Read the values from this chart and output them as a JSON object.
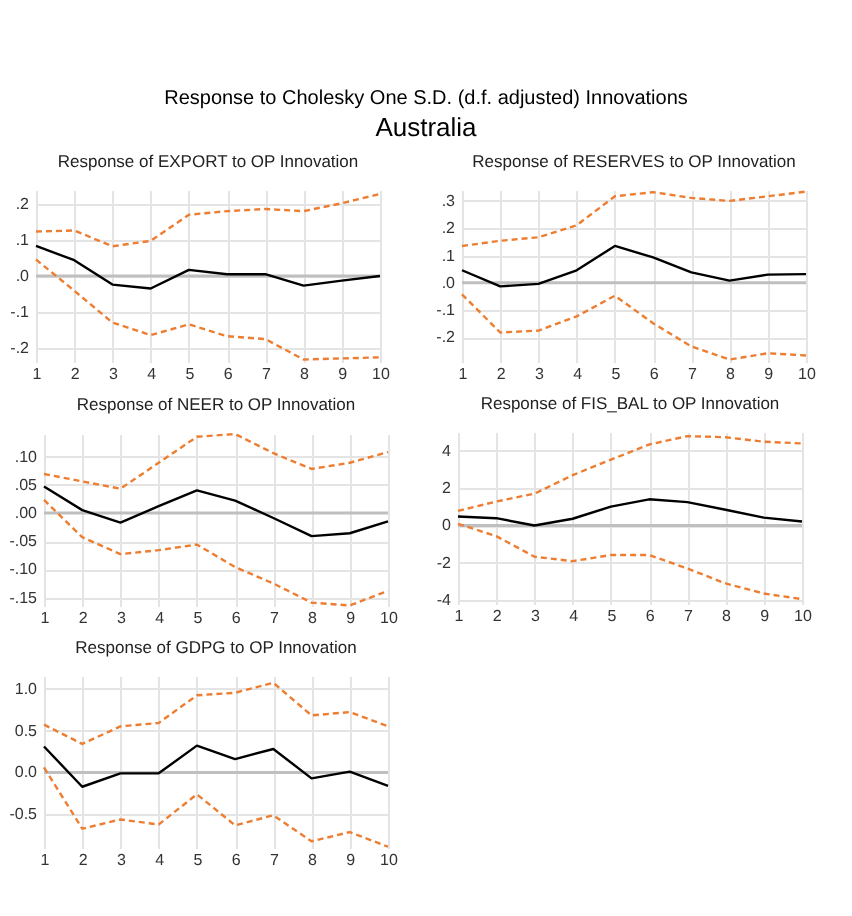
{
  "chart_data": [
    {
      "type": "line",
      "title": "Response of EXPORT to OP Innovation",
      "annotations": [
        "Response to Cholesky One S.D. (d.f. adjusted) Innovations",
        "Australia"
      ],
      "categories": [
        "1",
        "2",
        "3",
        "4",
        "5",
        "6",
        "7",
        "8",
        "9",
        "10"
      ],
      "ylim": [
        -0.24,
        0.24
      ],
      "yticks": [
        {
          "value": -0.2,
          "label": "-.2"
        },
        {
          "value": -0.1,
          "label": "-.1"
        },
        {
          "value": 0,
          "label": ".0"
        },
        {
          "value": 0.1,
          "label": ".1"
        },
        {
          "value": 0.2,
          "label": ".2"
        }
      ],
      "grid": true,
      "ref_lines": [
        {
          "axis": "y",
          "value": 0,
          "color": "#bfbfbf"
        }
      ],
      "series": [
        {
          "color": "#000000",
          "values": [
            0.084,
            0.044,
            -0.024,
            -0.035,
            0.017,
            0.005,
            0.005,
            -0.027,
            -0.013,
            0.0
          ]
        },
        {
          "color": "#ed7d31",
          "line_style": "dashed",
          "values": [
            0.124,
            0.127,
            0.083,
            0.098,
            0.171,
            0.181,
            0.187,
            0.181,
            0.203,
            0.229
          ]
        },
        {
          "color": "#ed7d31",
          "line_style": "dashed",
          "values": [
            0.046,
            -0.041,
            -0.13,
            -0.165,
            -0.135,
            -0.168,
            -0.176,
            -0.233,
            -0.23,
            -0.227
          ]
        }
      ]
    },
    {
      "type": "line",
      "title": "Response of RESERVES to OP Innovation",
      "categories": [
        "1",
        "2",
        "3",
        "4",
        "5",
        "6",
        "7",
        "8",
        "9",
        "10"
      ],
      "ylim": [
        -0.29,
        0.34
      ],
      "yticks": [
        {
          "value": -0.2,
          "label": "-.2"
        },
        {
          "value": -0.1,
          "label": "-.1"
        },
        {
          "value": 0,
          "label": ".0"
        },
        {
          "value": 0.1,
          "label": ".1"
        },
        {
          "value": 0.2,
          "label": ".2"
        },
        {
          "value": 0.3,
          "label": ".3"
        }
      ],
      "grid": true,
      "ref_lines": [
        {
          "axis": "y",
          "value": 0,
          "color": "#bfbfbf"
        }
      ],
      "series": [
        {
          "color": "#000000",
          "values": [
            0.046,
            -0.013,
            -0.004,
            0.046,
            0.135,
            0.093,
            0.038,
            0.008,
            0.03,
            0.032
          ]
        },
        {
          "color": "#ed7d31",
          "line_style": "dashed",
          "values": [
            0.135,
            0.154,
            0.167,
            0.211,
            0.317,
            0.332,
            0.311,
            0.3,
            0.317,
            0.334
          ]
        },
        {
          "color": "#ed7d31",
          "line_style": "dashed",
          "values": [
            -0.042,
            -0.182,
            -0.175,
            -0.123,
            -0.047,
            -0.148,
            -0.233,
            -0.281,
            -0.258,
            -0.266
          ]
        }
      ]
    },
    {
      "type": "line",
      "title": "Response of NEER to OP Innovation",
      "categories": [
        "1",
        "2",
        "3",
        "4",
        "5",
        "6",
        "7",
        "8",
        "9",
        "10"
      ],
      "ylim": [
        -0.165,
        0.14
      ],
      "yticks": [
        {
          "value": -0.15,
          "label": "-.15"
        },
        {
          "value": -0.1,
          "label": "-.10"
        },
        {
          "value": -0.05,
          "label": "-.05"
        },
        {
          "value": 0,
          "label": ".00"
        },
        {
          "value": 0.05,
          "label": ".05"
        },
        {
          "value": 0.1,
          "label": ".10"
        }
      ],
      "grid": true,
      "ref_lines": [
        {
          "axis": "y",
          "value": 0,
          "color": "#bfbfbf"
        }
      ],
      "series": [
        {
          "color": "#000000",
          "values": [
            0.047,
            0.005,
            -0.017,
            0.012,
            0.04,
            0.022,
            -0.009,
            -0.041,
            -0.036,
            -0.015
          ]
        },
        {
          "color": "#ed7d31",
          "line_style": "dashed",
          "values": [
            0.069,
            0.056,
            0.043,
            0.089,
            0.135,
            0.14,
            0.106,
            0.078,
            0.089,
            0.108
          ]
        },
        {
          "color": "#ed7d31",
          "line_style": "dashed",
          "values": [
            0.023,
            -0.043,
            -0.073,
            -0.066,
            -0.056,
            -0.096,
            -0.125,
            -0.159,
            -0.164,
            -0.138
          ]
        }
      ]
    },
    {
      "type": "line",
      "title": "Response of FIS_BAL to OP Innovation",
      "categories": [
        "1",
        "2",
        "3",
        "4",
        "5",
        "6",
        "7",
        "8",
        "9",
        "10"
      ],
      "ylim": [
        -4.2,
        5
      ],
      "yticks": [
        -4,
        -2,
        0,
        2,
        4
      ],
      "grid": true,
      "ref_lines": [
        {
          "axis": "y",
          "value": 0,
          "color": "#bfbfbf"
        }
      ],
      "series": [
        {
          "color": "#000000",
          "values": [
            0.48,
            0.39,
            0.0,
            0.36,
            1.01,
            1.4,
            1.25,
            0.84,
            0.42,
            0.21
          ]
        },
        {
          "color": "#ed7d31",
          "line_style": "dashed",
          "values": [
            0.78,
            1.28,
            1.7,
            2.69,
            3.52,
            4.33,
            4.78,
            4.72,
            4.48,
            4.39
          ]
        },
        {
          "color": "#ed7d31",
          "line_style": "dashed",
          "values": [
            0.09,
            -0.57,
            -1.67,
            -1.91,
            -1.58,
            -1.58,
            -2.3,
            -3.1,
            -3.64,
            -3.94
          ]
        }
      ]
    },
    {
      "type": "line",
      "title": "Response of GDPG to OP Innovation",
      "categories": [
        "1",
        "2",
        "3",
        "4",
        "5",
        "6",
        "7",
        "8",
        "9",
        "10"
      ],
      "ylim": [
        -0.9,
        1.15
      ],
      "yticks": [
        {
          "value": -0.5,
          "label": "-0.5"
        },
        {
          "value": 0,
          "label": "0.0"
        },
        {
          "value": 0.5,
          "label": "0.5"
        },
        {
          "value": 1,
          "label": "1.0"
        }
      ],
      "grid": true,
      "ref_lines": [
        {
          "axis": "y",
          "value": 0,
          "color": "#bfbfbf"
        }
      ],
      "series": [
        {
          "color": "#000000",
          "values": [
            0.31,
            -0.17,
            -0.01,
            -0.01,
            0.32,
            0.16,
            0.28,
            -0.07,
            0.01,
            -0.16
          ]
        },
        {
          "color": "#ed7d31",
          "line_style": "dashed",
          "values": [
            0.57,
            0.34,
            0.55,
            0.59,
            0.92,
            0.95,
            1.07,
            0.68,
            0.72,
            0.55
          ]
        },
        {
          "color": "#ed7d31",
          "line_style": "dashed",
          "values": [
            0.06,
            -0.67,
            -0.56,
            -0.62,
            -0.26,
            -0.63,
            -0.51,
            -0.82,
            -0.71,
            -0.885
          ]
        }
      ]
    }
  ]
}
